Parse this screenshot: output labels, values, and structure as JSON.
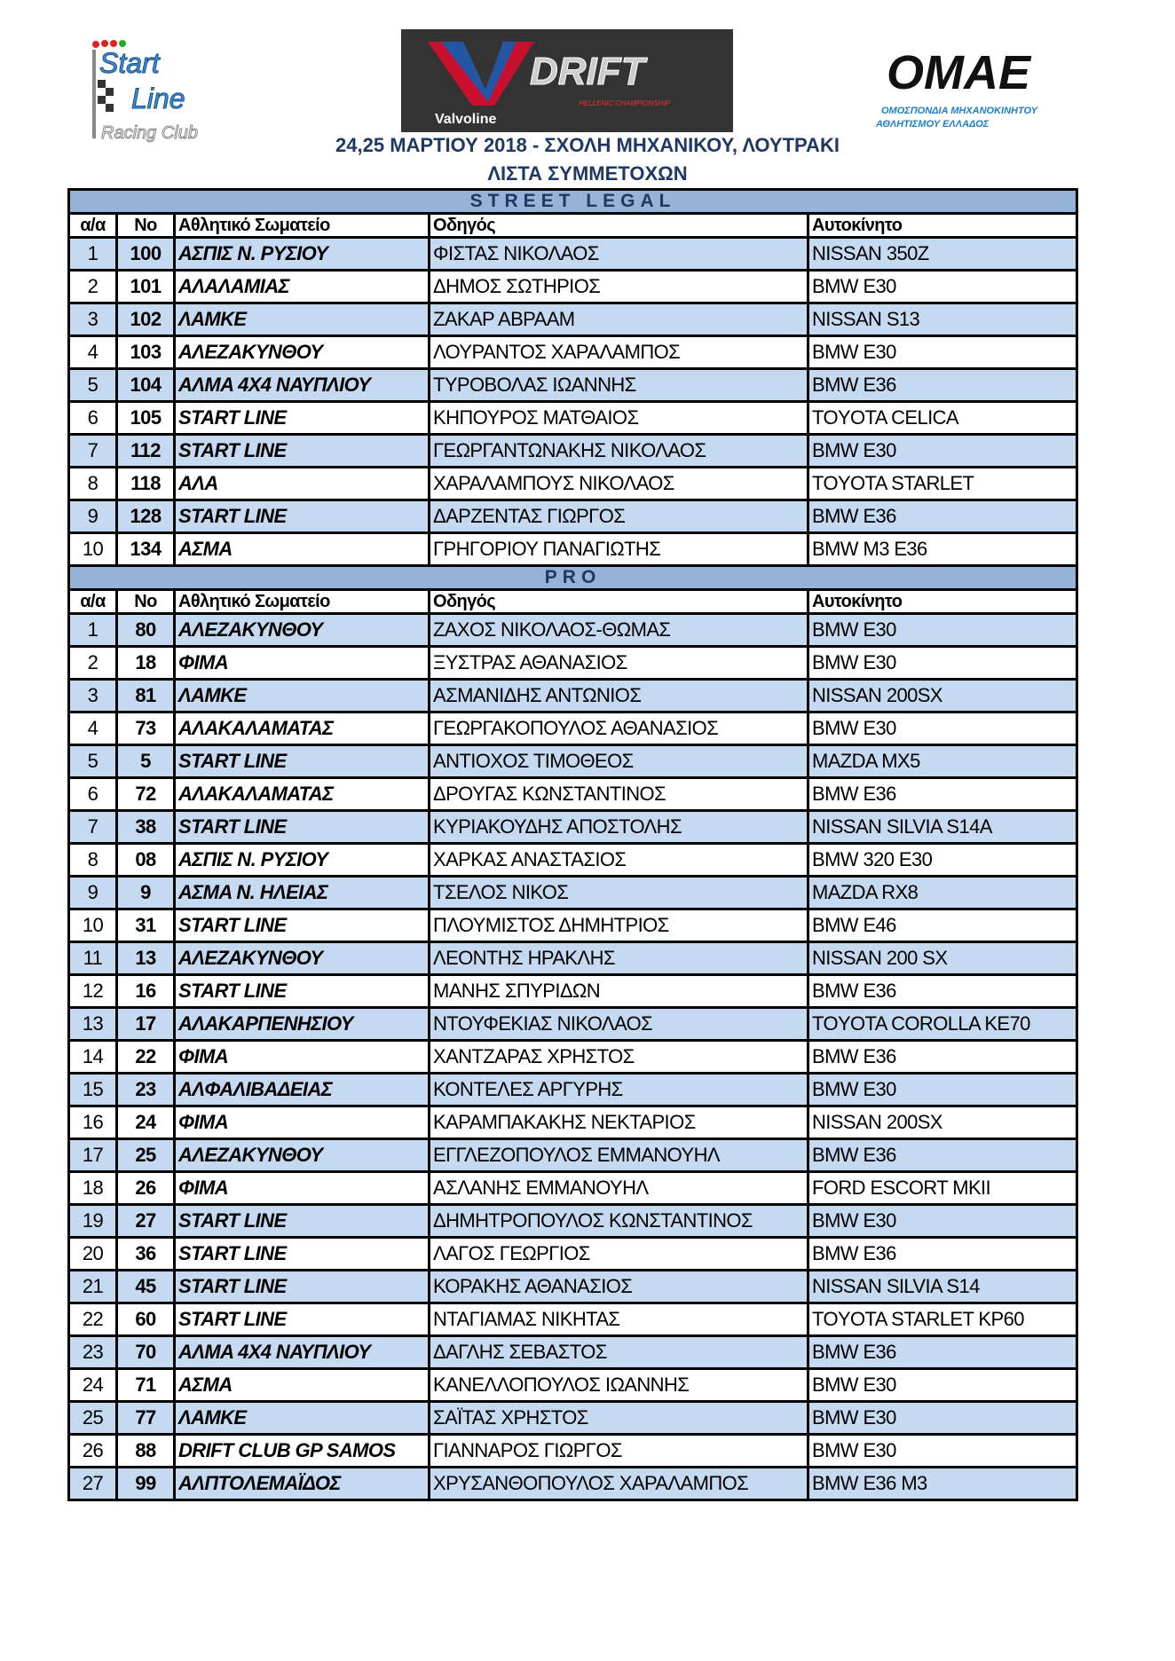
{
  "logos": {
    "left": "Start Line Racing Club",
    "center": "Valvoline V DRIFT HELLENIC CHAMPIONSHIP",
    "right": "OMAE ΟΜΟΣΠΟΝΔΙΑ ΜΗΧΑΝΟΚΙΝΗΤΟΥ ΑΘΛΗΤΙΣΜΟΥ ΕΛΛΑΔΟΣ"
  },
  "header": {
    "line1": "24,25 ΜΑΡΤΙΟΥ 2018  -  ΣΧΟΛΗ ΜΗΧΑΝΙΚΟΥ, ΛΟΥΤΡΑΚΙ",
    "line2": "ΛΙΣΤΑ ΣΥΜΜΕΤΟΧΩΝ"
  },
  "colors": {
    "section": "#95b3d7",
    "band": "#c5d9f1",
    "title": "#1f3864"
  },
  "columns": [
    "α/α",
    "Νο",
    "Αθλητικό Σωματείο",
    "Οδηγός",
    "Αυτοκίνητο"
  ],
  "sections": [
    {
      "title": "STREET LEGAL",
      "rows": [
        [
          "1",
          "100",
          "ΑΣΠΙΣ Ν. ΡΥΣΙΟΥ",
          "ΦΙΣΤΑΣ ΝΙΚΟΛΑΟΣ",
          "NISSAN 350Z"
        ],
        [
          "2",
          "101",
          "ΑΛΑΛΑΜΙΑΣ",
          "ΔΗΜΟΣ ΣΩΤΗΡΙΟΣ",
          "BMW E30"
        ],
        [
          "3",
          "102",
          "ΛΑΜΚΕ",
          "ΖΑΚΑΡ ΑΒΡΑΑΜ",
          "NISSAN S13"
        ],
        [
          "4",
          "103",
          "ΑΛΕΖΑΚΥΝΘΟΥ",
          "ΛΟΥΡΑΝΤΟΣ ΧΑΡΑΛΑΜΠΟΣ",
          "BMW E30"
        ],
        [
          "5",
          "104",
          "ΑΛΜΑ 4Χ4 ΝΑΥΠΛΙΟΥ",
          "ΤΥΡΟΒΟΛΑΣ ΙΩΑΝΝΗΣ",
          "BMW E36"
        ],
        [
          "6",
          "105",
          "START LINE",
          "ΚΗΠΟΥΡΟΣ ΜΑΤΘΑΙΟΣ",
          "TOYOTA CELICA"
        ],
        [
          "7",
          "112",
          "START LINE",
          "ΓΕΩΡΓΑΝΤΩΝΑΚΗΣ ΝΙΚΟΛΑΟΣ",
          "BMW E30"
        ],
        [
          "8",
          "118",
          "ΑΛΑ",
          "ΧΑΡΑΛΑΜΠΟΥΣ ΝΙΚΟΛΑΟΣ",
          "TOYOTA STARLET"
        ],
        [
          "9",
          "128",
          "START LINE",
          "ΔΑΡΖΕΝΤΑΣ ΓΙΩΡΓΟΣ",
          "BMW E36"
        ],
        [
          "10",
          "134",
          "ΑΣΜΑ",
          "ΓΡΗΓΟΡΙΟΥ ΠΑΝΑΓΙΩΤΗΣ",
          "BMW M3 E36"
        ]
      ]
    },
    {
      "title": "PRO",
      "rows": [
        [
          "1",
          "80",
          "ΑΛΕΖΑΚΥΝΘΟΥ",
          "ΖΑΧΟΣ ΝΙΚΟΛΑΟΣ-ΘΩΜΑΣ",
          "BMW E30"
        ],
        [
          "2",
          "18",
          "ΦΙΜΑ",
          "ΞΥΣΤΡΑΣ ΑΘΑΝΑΣΙΟΣ",
          "BMW E30"
        ],
        [
          "3",
          "81",
          "ΛΑΜΚΕ",
          "ΑΣΜΑΝΙΔΗΣ ΑΝΤΩΝΙΟΣ",
          "NISSAN 200SX"
        ],
        [
          "4",
          "73",
          "ΑΛΑΚΑΛΑΜΑΤΑΣ",
          "ΓΕΩΡΓΑΚΟΠΟΥΛΟΣ ΑΘΑΝΑΣΙΟΣ",
          "BMW E30"
        ],
        [
          "5",
          "5",
          "START LINE",
          "ΑΝΤΙΟΧΟΣ ΤΙΜΟΘΕΟΣ",
          "MAZDA MX5"
        ],
        [
          "6",
          "72",
          "ΑΛΑΚΑΛΑΜΑΤΑΣ",
          "ΔΡΟΥΓΑΣ ΚΩΝΣΤΑΝΤΙΝΟΣ",
          "BMW E36"
        ],
        [
          "7",
          "38",
          "START LINE",
          "ΚΥΡΙΑΚΟΥΔΗΣ ΑΠΟΣΤΟΛΗΣ",
          "NISSAN SILVIA S14A"
        ],
        [
          "8",
          "08",
          "ΑΣΠΙΣ Ν. ΡΥΣΙΟΥ",
          "ΧΑΡΚΑΣ ΑΝΑΣΤΑΣΙΟΣ",
          "BMW 320 E30"
        ],
        [
          "9",
          "9",
          "ΑΣΜΑ Ν. ΗΛΕΙΑΣ",
          "ΤΣΕΛΟΣ ΝΙΚΟΣ",
          "MAZDA RX8"
        ],
        [
          "10",
          "31",
          "START LINE",
          "ΠΛΟΥΜΙΣΤΟΣ ΔΗΜΗΤΡΙΟΣ",
          "BMW E46"
        ],
        [
          "11",
          "13",
          "ΑΛΕΖΑΚΥΝΘΟΥ",
          "ΛΕΟΝΤΗΣ ΗΡΑΚΛΗΣ",
          "NISSAN 200 SX"
        ],
        [
          "12",
          "16",
          "START LINE",
          "ΜΑΝΗΣ ΣΠΥΡΙΔΩΝ",
          "BMW E36"
        ],
        [
          "13",
          "17",
          "ΑΛΑΚΑΡΠΕΝΗΣΙΟΥ",
          "ΝΤΟΥΦΕΚΙΑΣ ΝΙΚΟΛΑΟΣ",
          "TOYOTA COROLLA KE70"
        ],
        [
          "14",
          "22",
          "ΦΙΜΑ",
          "ΧΑΝΤΖΑΡΑΣ ΧΡΗΣΤΟΣ",
          "BMW E36"
        ],
        [
          "15",
          "23",
          "ΑΛΦΑΛΙΒΑΔΕΙΑΣ",
          "ΚΟΝΤΕΛΕΣ ΑΡΓΥΡΗΣ",
          "BMW E30"
        ],
        [
          "16",
          "24",
          "ΦΙΜΑ",
          "ΚΑΡΑΜΠΑΚΑΚΗΣ ΝΕΚΤΑΡΙΟΣ",
          "NISSAN 200SX"
        ],
        [
          "17",
          "25",
          "ΑΛΕΖΑΚΥΝΘΟΥ",
          "ΕΓΓΛΕΖΟΠΟΥΛΟΣ ΕΜΜΑΝΟΥΗΛ",
          "BMW E36"
        ],
        [
          "18",
          "26",
          "ΦΙΜΑ",
          "ΑΣΛΑΝΗΣ ΕΜΜΑΝΟΥΗΛ",
          "FORD ESCORT MKII"
        ],
        [
          "19",
          "27",
          "START LINE",
          "ΔΗΜΗΤΡΟΠΟΥΛΟΣ ΚΩΝΣΤΑΝΤΙΝΟΣ",
          "BMW E30"
        ],
        [
          "20",
          "36",
          "START LINE",
          "ΛΑΓΟΣ ΓΕΩΡΓΙΟΣ",
          "BMW E36"
        ],
        [
          "21",
          "45",
          "START LINE",
          "ΚΟΡΑΚΗΣ ΑΘΑΝΑΣΙΟΣ",
          "NISSAN SILVIA S14"
        ],
        [
          "22",
          "60",
          "START LINE",
          "ΝΤΑΓΙΑΜΑΣ ΝΙΚΗΤΑΣ",
          "TOYOTA STARLET KP60"
        ],
        [
          "23",
          "70",
          "ΑΛΜΑ 4Χ4 ΝΑΥΠΛΙΟΥ",
          "ΔΑΓΛΗΣ ΣΕΒΑΣΤΟΣ",
          "BMW E36"
        ],
        [
          "24",
          "71",
          "ΑΣΜΑ",
          "ΚΑΝΕΛΛΟΠΟΥΛΟΣ ΙΩΑΝΝΗΣ",
          "BMW E30"
        ],
        [
          "25",
          "77",
          "ΛΑΜΚΕ",
          "ΣΑΪΤΑΣ ΧΡΗΣΤΟΣ",
          "BMW E30"
        ],
        [
          "26",
          "88",
          "DRIFT CLUB GP SAMOS",
          "ΓΙΑΝΝΑΡΟΣ ΓΙΩΡΓΟΣ",
          "BMW E30"
        ],
        [
          "27",
          "99",
          "ΑΛΠΤΟΛΕΜΑΪΔΟΣ",
          "ΧΡΥΣΑΝΘΟΠΟΥΛΟΣ ΧΑΡΑΛΑΜΠΟΣ",
          "BMW E36 M3"
        ]
      ]
    }
  ]
}
